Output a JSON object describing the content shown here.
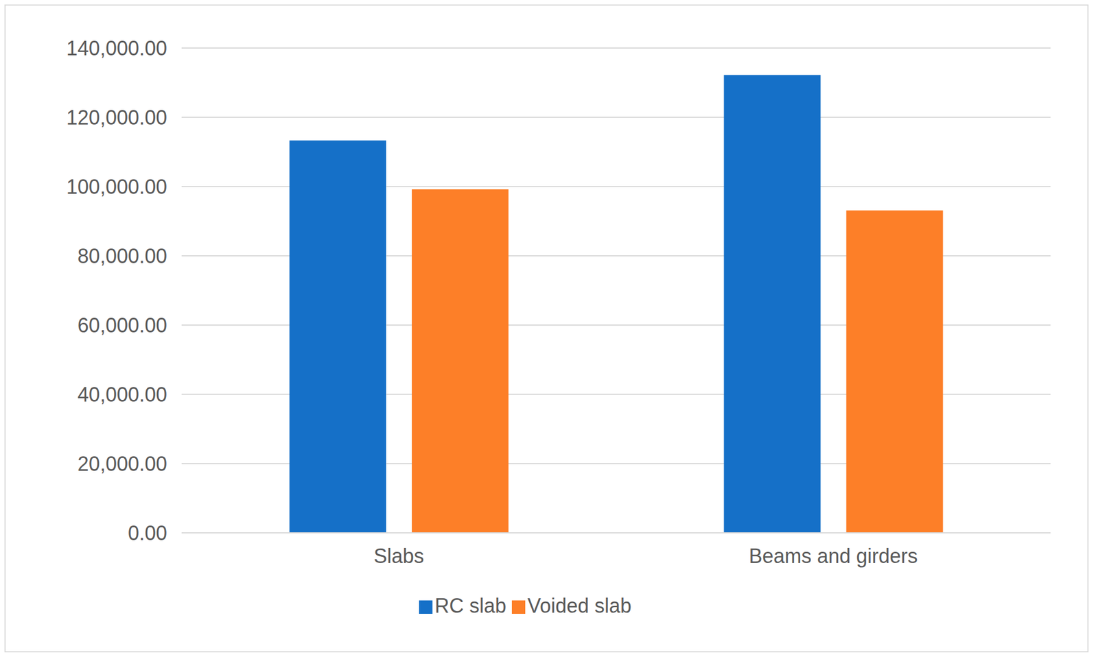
{
  "chart_data": {
    "type": "bar",
    "categories": [
      "Slabs",
      "Beams and girders"
    ],
    "series": [
      {
        "name": "RC slab",
        "color": "#1570c8",
        "values": [
          113300,
          132200
        ]
      },
      {
        "name": "Voided slab",
        "color": "#fd7f28",
        "values": [
          99200,
          93100
        ]
      }
    ],
    "ylim": [
      0,
      140000
    ],
    "yticks": [
      {
        "value": 0,
        "label": "0.00"
      },
      {
        "value": 20000,
        "label": "20,000.00"
      },
      {
        "value": 40000,
        "label": "40,000.00"
      },
      {
        "value": 60000,
        "label": "60,000.00"
      },
      {
        "value": 80000,
        "label": "80,000.00"
      },
      {
        "value": 100000,
        "label": "100,000.00"
      },
      {
        "value": 120000,
        "label": "120,000.00"
      },
      {
        "value": 140000,
        "label": "140,000.00"
      }
    ],
    "grid": true,
    "legend": "bottom"
  }
}
